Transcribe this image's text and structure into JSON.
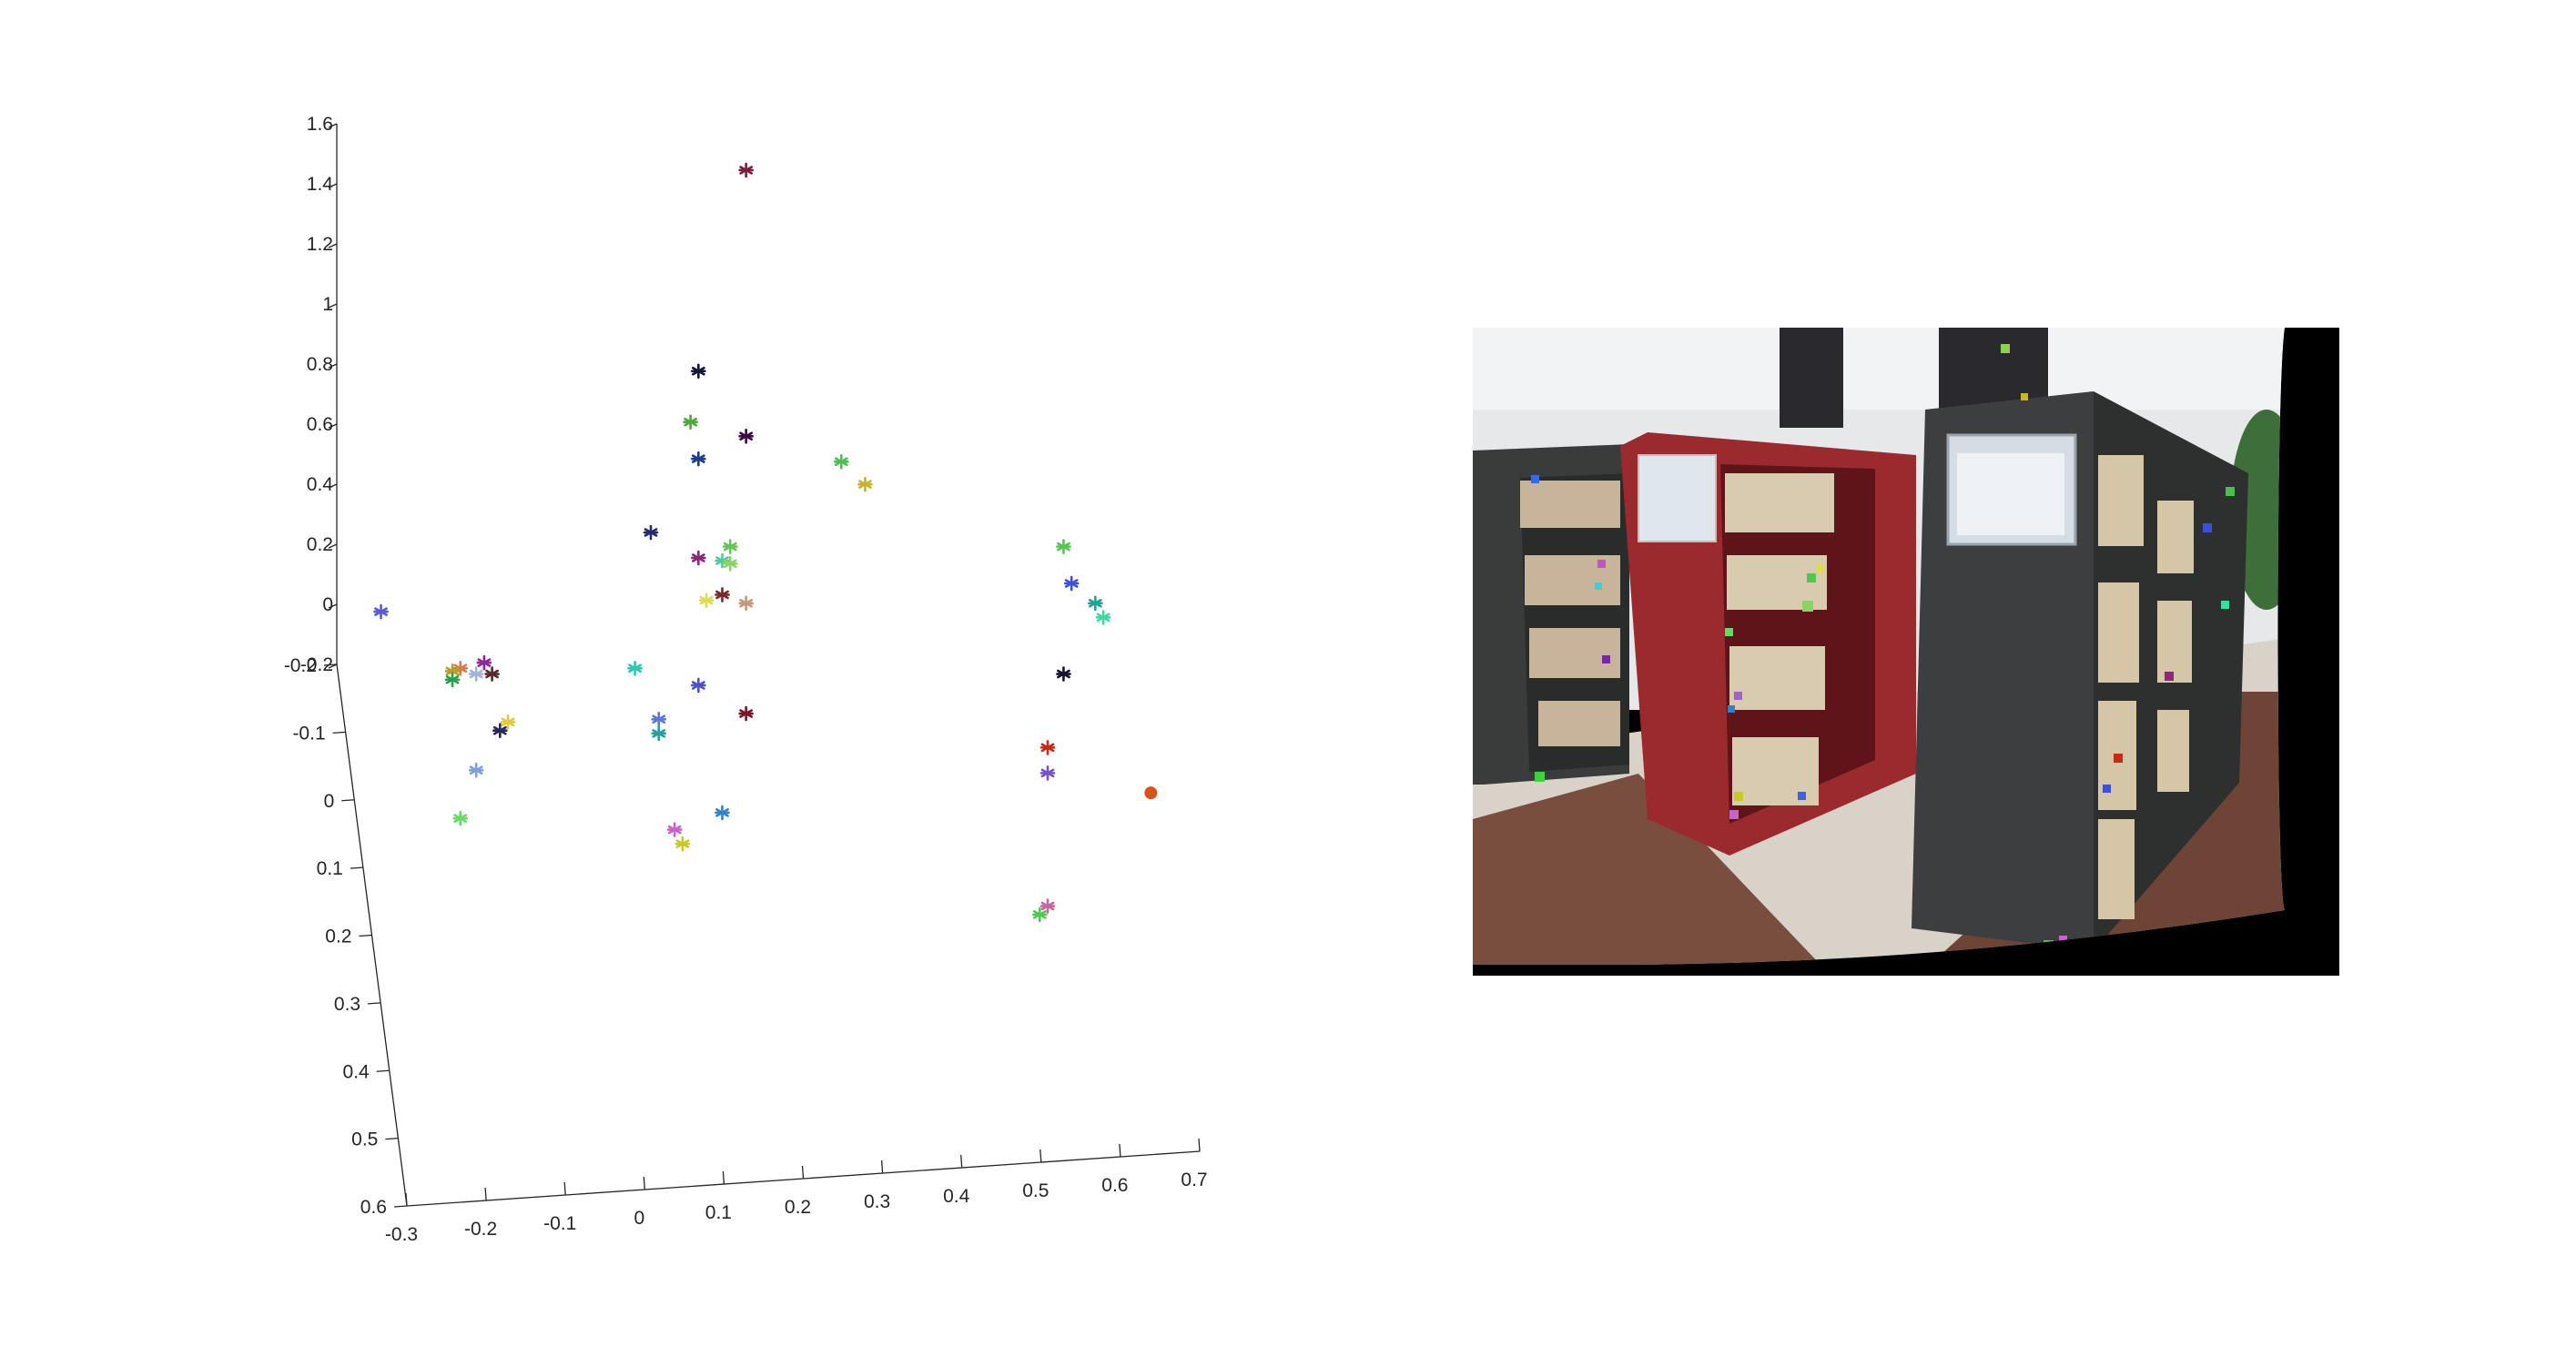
{
  "chart_data": [
    {
      "type": "scatter",
      "title": "",
      "xlabel": "",
      "ylabel": "",
      "zlabel": "",
      "axes": {
        "x": {
          "ticks": [
            -0.3,
            -0.2,
            -0.1,
            0,
            0.1,
            0.2,
            0.3,
            0.4,
            0.5,
            0.6,
            0.7
          ],
          "labels": [
            "-0.3",
            "-0.2",
            "-0.1",
            "0",
            "0.1",
            "0.2",
            "0.3",
            "0.4",
            "0.5",
            "0.6",
            "0.7"
          ]
        },
        "z": {
          "ticks": [
            -0.2,
            0,
            0.2,
            0.4,
            0.6,
            0.8,
            1,
            1.2,
            1.4,
            1.6
          ],
          "labels": [
            "-0.2",
            "0",
            "0.2",
            "0.4",
            "0.6",
            "0.8",
            "1",
            "1.2",
            "1.4",
            "1.6"
          ]
        },
        "y": {
          "ticks": [
            -0.2,
            -0.1,
            0,
            0.1,
            0.2,
            0.3,
            0.4,
            0.5,
            0.6
          ],
          "labels": [
            "-0.2",
            "-0.1",
            "0",
            "0.1",
            "0.2",
            "0.3",
            "0.4",
            "0.5",
            "0.6"
          ]
        }
      },
      "grid": false,
      "marker_points": [
        {
          "x": 0.12,
          "z": 1.46,
          "color": "#7a1f3d"
        },
        {
          "x": 0.06,
          "z": 0.75,
          "color": "#14143c"
        },
        {
          "x": 0.05,
          "z": 0.57,
          "color": "#4ea83a"
        },
        {
          "x": 0.12,
          "z": 0.52,
          "color": "#3c0a46"
        },
        {
          "x": 0.06,
          "z": 0.44,
          "color": "#1e3c8c"
        },
        {
          "x": 0.24,
          "z": 0.43,
          "color": "#4cc04c"
        },
        {
          "x": 0.27,
          "z": 0.35,
          "color": "#c8b428"
        },
        {
          "x": -0.0,
          "z": 0.18,
          "color": "#28286e"
        },
        {
          "x": 0.1,
          "z": 0.13,
          "color": "#64c850"
        },
        {
          "x": 0.06,
          "z": 0.09,
          "color": "#8c2878"
        },
        {
          "x": 0.09,
          "z": 0.08,
          "color": "#50c8a0"
        },
        {
          "x": 0.1,
          "z": 0.07,
          "color": "#8cd264"
        },
        {
          "x": 0.09,
          "z": -0.04,
          "color": "#782828"
        },
        {
          "x": 0.07,
          "z": -0.06,
          "color": "#dcdc50"
        },
        {
          "x": 0.12,
          "z": -0.07,
          "color": "#c89678"
        },
        {
          "x": 0.52,
          "z": 0.13,
          "color": "#50c850"
        },
        {
          "x": 0.53,
          "z": 0.0,
          "color": "#3c50dc"
        },
        {
          "x": 0.56,
          "z": -0.07,
          "color": "#28a096"
        },
        {
          "x": 0.57,
          "z": -0.12,
          "color": "#3cdca0"
        },
        {
          "x": -0.34,
          "z": -0.1,
          "color": "#5a5ad2"
        },
        {
          "x": 0.52,
          "z": -0.32,
          "color": "#141432"
        },
        {
          "x": -0.02,
          "z": -0.3,
          "color": "#28c8b4"
        },
        {
          "x": 0.06,
          "z": -0.36,
          "color": "#5050c8"
        },
        {
          "x": 0.12,
          "z": -0.46,
          "color": "#7a1428"
        },
        {
          "x": 0.5,
          "z": -0.58,
          "color": "#c82814"
        },
        {
          "x": 0.5,
          "z": -0.67,
          "color": "#7850c8"
        },
        {
          "x": 0.01,
          "z": -0.48,
          "color": "#5a78dc"
        },
        {
          "x": 0.01,
          "z": -0.53,
          "color": "#28a0a0"
        },
        {
          "x": 0.09,
          "z": -0.81,
          "color": "#3282c8"
        },
        {
          "x": 0.03,
          "z": -0.87,
          "color": "#c864c8"
        },
        {
          "x": 0.04,
          "z": -0.92,
          "color": "#c8c828"
        },
        {
          "x": 0.5,
          "z": -1.14,
          "color": "#c864a0"
        },
        {
          "x": 0.49,
          "z": -1.17,
          "color": "#50c850"
        },
        {
          "x": -0.21,
          "z": -0.28,
          "color": "#8c28a0"
        },
        {
          "x": -0.24,
          "z": -0.3,
          "color": "#dc7850"
        },
        {
          "x": -0.25,
          "z": -0.31,
          "color": "#b4a028"
        },
        {
          "x": -0.22,
          "z": -0.32,
          "color": "#a0b4dc"
        },
        {
          "x": -0.2,
          "z": -0.32,
          "color": "#5a2828"
        },
        {
          "x": -0.25,
          "z": -0.34,
          "color": "#28a050"
        },
        {
          "x": -0.18,
          "z": -0.49,
          "color": "#e6c83c"
        },
        {
          "x": -0.19,
          "z": -0.52,
          "color": "#28285a"
        },
        {
          "x": -0.22,
          "z": -0.66,
          "color": "#78a0dc"
        },
        {
          "x": -0.24,
          "z": -0.83,
          "color": "#64dc64"
        }
      ],
      "highlight_point": {
        "x": 0.63,
        "z": -0.74,
        "color": "#d95319"
      }
    },
    {
      "type": "image",
      "description_label": "warped library photo with feature markers",
      "colors": {
        "background": "#000000",
        "red_shelf": "#9a2a2e",
        "dark_shelf": "#3a3c3c",
        "floor": "#6e4a3c"
      }
    }
  ]
}
